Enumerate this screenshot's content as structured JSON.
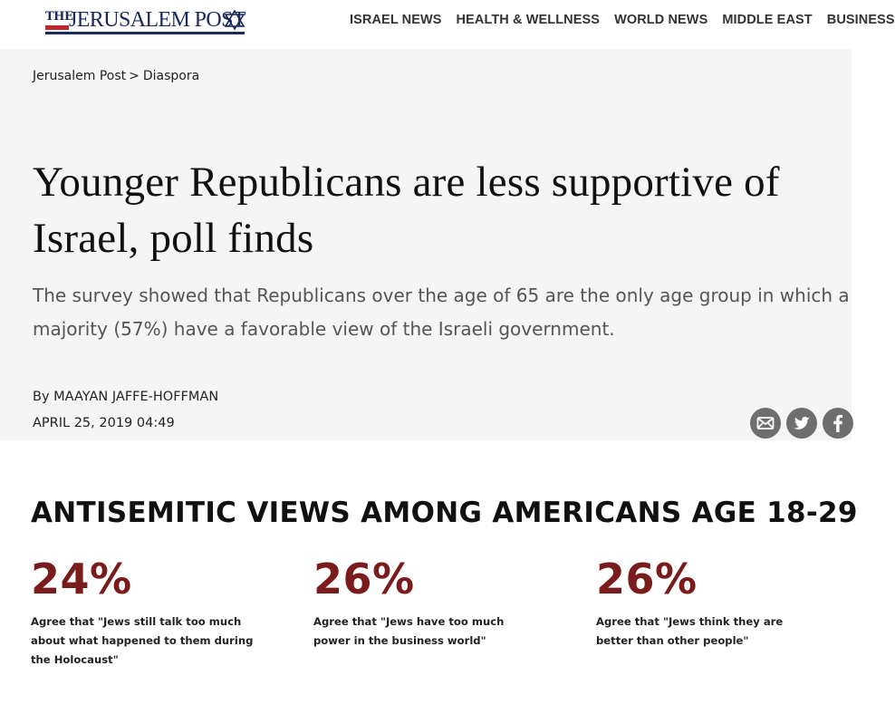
{
  "header": {
    "logo": {
      "prefix": "THE",
      "name": "JERUSALEM POST"
    },
    "nav_items": [
      "ISRAEL NEWS",
      "HEALTH & WELLNESS",
      "WORLD NEWS",
      "MIDDLE EAST",
      "BUSINESS"
    ]
  },
  "breadcrumb": {
    "home": "Jerusalem Post",
    "separator": ">",
    "section": "Diaspora"
  },
  "article": {
    "headline": "Younger Republicans are less supportive of Israel, poll finds",
    "subheadline": "The survey showed that Republicans over the age of 65 are the only age group in which a majority (57%) have a favorable view of the Israeli government.",
    "byline_prefix": "By",
    "author": "MAAYAN JAFFE-HOFFMAN",
    "date": "APRIL 25, 2019 04:49"
  },
  "share": {
    "icons": [
      "email-icon",
      "twitter-icon",
      "facebook-icon"
    ],
    "icon_color": "#6e6e6e"
  },
  "infographic": {
    "title": "ANTISEMITIC VIEWS AMONG AMERICANS AGE 18-29",
    "accent_color": "#7b1c1c",
    "stats": [
      {
        "value": "24%",
        "text": "Agree that \"Jews still talk too much about what happened to them during the Holocaust\""
      },
      {
        "value": "26%",
        "text": "Agree that \"Jews have too much power in the business world\""
      },
      {
        "value": "26%",
        "text": "Agree that \"Jews think they are better than other people\""
      }
    ]
  }
}
